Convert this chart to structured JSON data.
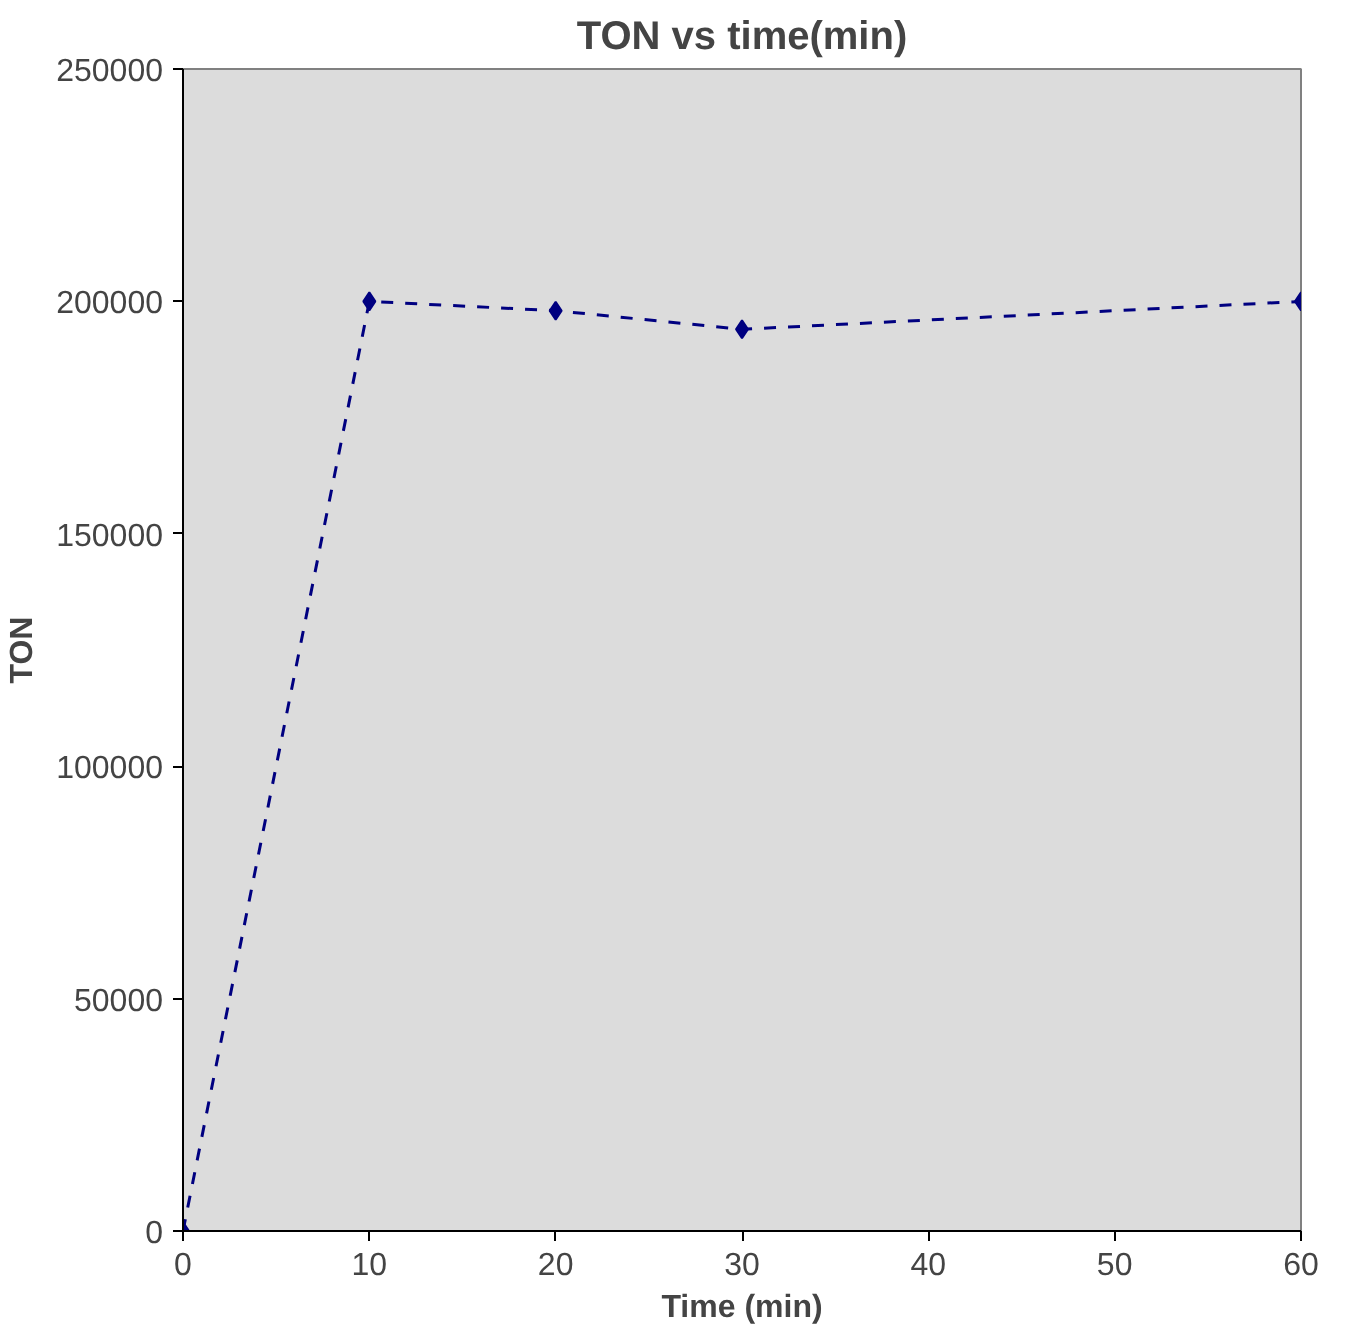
{
  "chart_data": {
    "type": "line",
    "title": "TON vs time(min)",
    "xlabel": "Time (min)",
    "ylabel": "TON",
    "x": [
      0,
      10,
      20,
      30,
      60
    ],
    "series": [
      {
        "color": "#000080",
        "values": [
          0,
          200000,
          198000,
          194000,
          200000
        ]
      }
    ],
    "xlim": [
      0,
      60
    ],
    "xticks": [
      0,
      10,
      20,
      30,
      40,
      50,
      60
    ],
    "ylim": [
      0,
      250000
    ],
    "yticks": [
      0,
      50000,
      100000,
      150000,
      200000,
      250000
    ],
    "marker": "diamond",
    "line_style": "dashed"
  }
}
